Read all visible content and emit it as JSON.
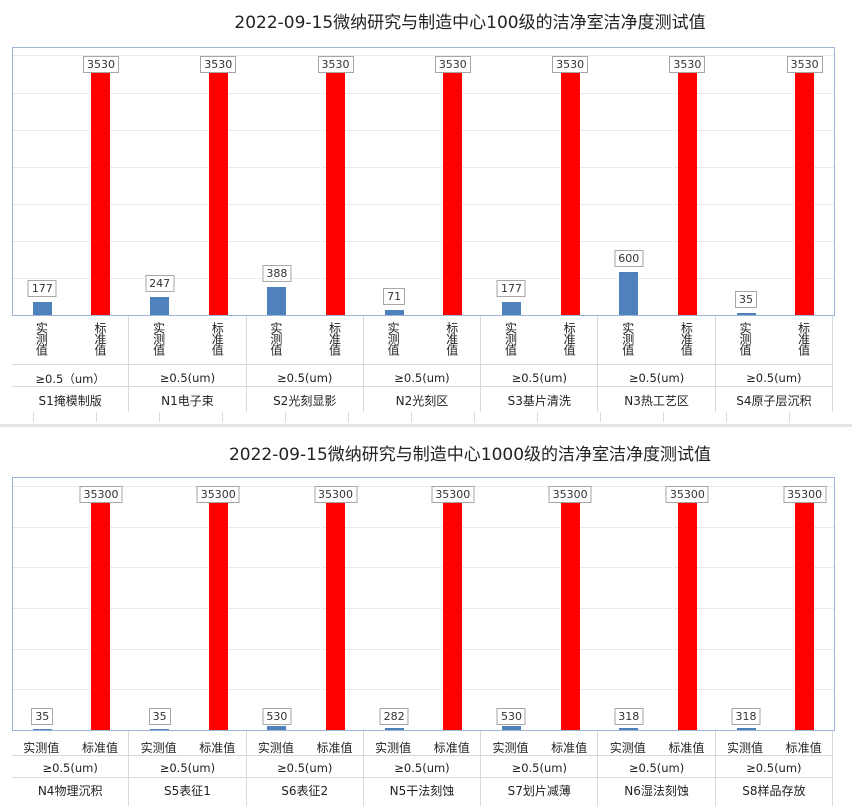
{
  "colors": {
    "measured": "#4f81bd",
    "standard": "#ff0000"
  },
  "chart_data": [
    {
      "type": "bar",
      "title": "2022-09-15微纳研究与制造中心100级的洁净室洁净度测试值",
      "series_labels": [
        "实测值",
        "标准值"
      ],
      "groups": [
        {
          "size": "≥0.5（um）",
          "name": "S1掩模制版",
          "values": [
            177,
            3530
          ]
        },
        {
          "size": "≥0.5(um)",
          "name": "N1电子束",
          "values": [
            247,
            3530
          ]
        },
        {
          "size": "≥0.5(um)",
          "name": "S2光刻显影",
          "values": [
            388,
            3530
          ]
        },
        {
          "size": "≥0.5(um)",
          "name": "N2光刻区",
          "values": [
            71,
            3530
          ]
        },
        {
          "size": "≥0.5(um)",
          "name": "S3基片清洗",
          "values": [
            177,
            3530
          ]
        },
        {
          "size": "≥0.5(um)",
          "name": "N3热工艺区",
          "values": [
            600,
            3530
          ]
        },
        {
          "size": "≥0.5(um)",
          "name": "S4原子层沉积",
          "values": [
            35,
            3530
          ]
        }
      ],
      "ylim": [
        0,
        3750
      ],
      "label_orientation": "vertical",
      "grid": true
    },
    {
      "type": "bar",
      "title": "2022-09-15微纳研究与制造中心1000级的洁净室洁净度测试值",
      "series_labels": [
        "实测值",
        "标准值"
      ],
      "groups": [
        {
          "size": "≥0.5(um)",
          "name": "N4物理沉积",
          "values": [
            35,
            35300
          ]
        },
        {
          "size": "≥0.5(um)",
          "name": "S5表征1",
          "values": [
            35,
            35300
          ]
        },
        {
          "size": "≥0.5(um)",
          "name": "S6表征2",
          "values": [
            530,
            35300
          ]
        },
        {
          "size": "≥0.5(um)",
          "name": "N5干法刻蚀",
          "values": [
            282,
            35300
          ]
        },
        {
          "size": "≥0.5(um)",
          "name": "S7划片减薄",
          "values": [
            530,
            35300
          ]
        },
        {
          "size": "≥0.5(um)",
          "name": "N6湿法刻蚀",
          "values": [
            318,
            35300
          ]
        },
        {
          "size": "≥0.5(um)",
          "name": "S8样品存放",
          "values": [
            318,
            35300
          ]
        }
      ],
      "ylim": [
        0,
        37000
      ],
      "label_orientation": "horizontal",
      "grid": true
    }
  ]
}
